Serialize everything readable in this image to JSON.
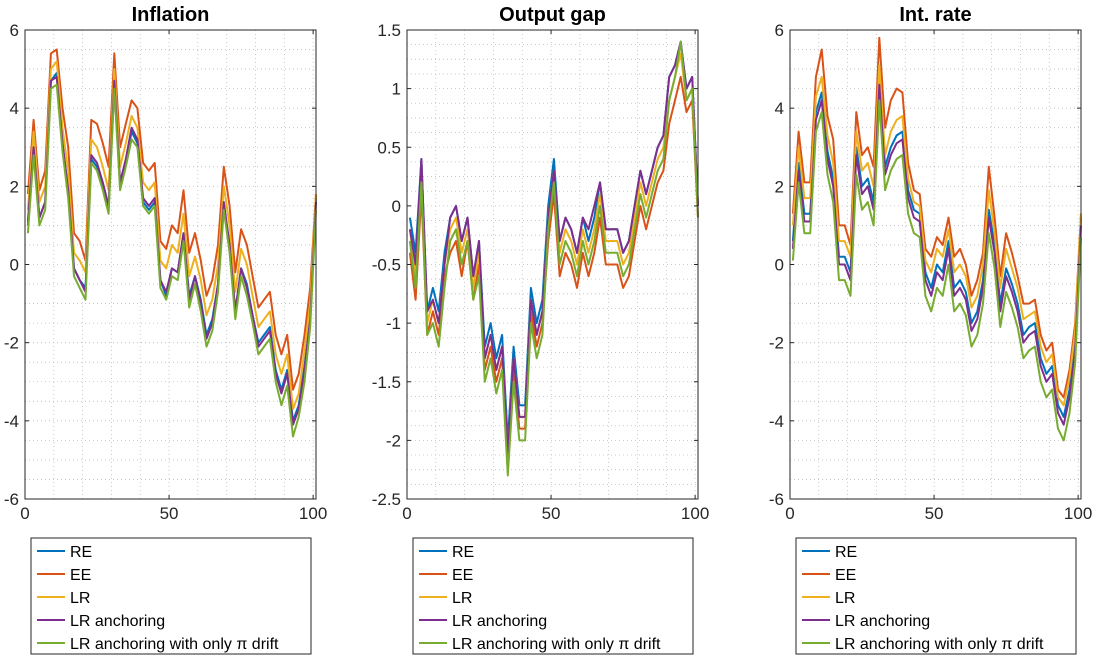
{
  "chart_data": [
    {
      "type": "line",
      "title": "Inflation",
      "xlim": [
        0,
        101
      ],
      "ylim": [
        -6,
        6
      ],
      "xticks": [
        0,
        50,
        100
      ],
      "xtick_labels": [
        "0",
        "50",
        "100"
      ],
      "yticks": [
        -6,
        -4,
        -2,
        0,
        2,
        4,
        6
      ],
      "ytick_labels": [
        "-6",
        "-4",
        "-2",
        "0",
        "2",
        "4",
        "6"
      ],
      "grid": "minor-dotted",
      "legend_position": "below",
      "x": [
        1,
        3,
        5,
        7,
        9,
        11,
        13,
        15,
        17,
        19,
        21,
        23,
        25,
        27,
        29,
        31,
        33,
        35,
        37,
        39,
        41,
        43,
        45,
        47,
        49,
        51,
        53,
        55,
        57,
        59,
        61,
        63,
        65,
        67,
        69,
        71,
        73,
        75,
        77,
        79,
        81,
        83,
        85,
        87,
        89,
        91,
        93,
        95,
        97,
        99,
        101
      ],
      "series": [
        {
          "name": "RE",
          "color": "#0072BD",
          "values": [
            1.0,
            3.0,
            1.2,
            1.6,
            4.7,
            4.9,
            3.1,
            1.9,
            -0.1,
            -0.4,
            -0.6,
            2.7,
            2.5,
            2.0,
            1.4,
            4.6,
            2.0,
            2.6,
            3.4,
            3.1,
            1.6,
            1.4,
            1.6,
            -0.4,
            -0.8,
            -0.1,
            -0.2,
            0.8,
            -0.8,
            -0.3,
            -0.9,
            -1.8,
            -1.4,
            -0.5,
            1.5,
            0.5,
            -1.2,
            -0.1,
            -0.5,
            -1.3,
            -2.0,
            -1.8,
            -1.6,
            -2.7,
            -3.2,
            -2.7,
            -4.0,
            -3.6,
            -2.6,
            -1.4,
            1.7
          ]
        },
        {
          "name": "EE",
          "color": "#D95319",
          "values": [
            1.8,
            3.7,
            1.9,
            2.4,
            5.4,
            5.5,
            4.0,
            3.0,
            0.8,
            0.6,
            0.1,
            3.7,
            3.6,
            3.1,
            2.5,
            5.4,
            3.0,
            3.6,
            4.2,
            4.0,
            2.6,
            2.4,
            2.6,
            0.6,
            0.4,
            1.0,
            0.8,
            1.9,
            0.3,
            0.8,
            0.1,
            -0.8,
            -0.4,
            0.5,
            2.5,
            1.5,
            -0.2,
            0.9,
            0.5,
            -0.3,
            -1.1,
            -0.9,
            -0.7,
            -1.8,
            -2.3,
            -1.8,
            -3.2,
            -2.8,
            -1.8,
            -0.6,
            1.8
          ]
        },
        {
          "name": "LR",
          "color": "#EDB120",
          "values": [
            1.4,
            3.4,
            1.6,
            2.0,
            5.0,
            5.2,
            3.5,
            2.4,
            0.3,
            0.1,
            -0.2,
            3.2,
            3.0,
            2.5,
            1.9,
            5.0,
            2.5,
            3.1,
            3.8,
            3.5,
            2.1,
            1.9,
            2.1,
            0.1,
            -0.1,
            0.5,
            0.3,
            1.3,
            -0.3,
            0.2,
            -0.4,
            -1.3,
            -0.9,
            0.0,
            2.0,
            1.0,
            -0.7,
            0.4,
            0.0,
            -0.8,
            -1.6,
            -1.4,
            -1.2,
            -2.3,
            -2.8,
            -2.3,
            -3.7,
            -3.3,
            -2.2,
            -1.0,
            1.8
          ]
        },
        {
          "name": "LR anchoring",
          "color": "#7E2F8E",
          "values": [
            1.1,
            3.0,
            1.2,
            1.6,
            4.7,
            4.8,
            3.1,
            1.9,
            -0.1,
            -0.4,
            -0.7,
            2.8,
            2.6,
            2.1,
            1.5,
            4.7,
            2.1,
            2.7,
            3.5,
            3.2,
            1.7,
            1.5,
            1.7,
            -0.4,
            -0.7,
            -0.1,
            -0.2,
            0.8,
            -0.9,
            -0.3,
            -1.0,
            -1.9,
            -1.5,
            -0.5,
            1.6,
            0.5,
            -1.2,
            -0.1,
            -0.6,
            -1.3,
            -2.1,
            -1.9,
            -1.7,
            -2.8,
            -3.3,
            -2.8,
            -4.1,
            -3.7,
            -2.7,
            -1.4,
            1.6
          ]
        },
        {
          "name": "LR anchoring with only π drift",
          "color": "#77AC30",
          "values": [
            0.8,
            2.8,
            1.0,
            1.4,
            4.5,
            4.6,
            2.9,
            1.7,
            -0.3,
            -0.6,
            -0.9,
            2.6,
            2.4,
            1.9,
            1.3,
            4.5,
            1.9,
            2.5,
            3.2,
            3.0,
            1.5,
            1.3,
            1.5,
            -0.6,
            -0.9,
            -0.3,
            -0.4,
            0.6,
            -1.1,
            -0.5,
            -1.2,
            -2.1,
            -1.7,
            -0.7,
            1.4,
            0.3,
            -1.4,
            -0.3,
            -0.8,
            -1.5,
            -2.3,
            -2.1,
            -1.9,
            -3.0,
            -3.6,
            -3.1,
            -4.4,
            -3.9,
            -3.0,
            -1.6,
            1.4
          ]
        }
      ]
    },
    {
      "type": "line",
      "title": "Output gap",
      "xlim": [
        0,
        101
      ],
      "ylim": [
        -2.5,
        1.5
      ],
      "xticks": [
        0,
        50,
        100
      ],
      "xtick_labels": [
        "0",
        "50",
        "100"
      ],
      "yticks": [
        -2.5,
        -2,
        -1.5,
        -1,
        -0.5,
        0,
        0.5,
        1,
        1.5
      ],
      "ytick_labels": [
        "-2.5",
        "-2",
        "-1.5",
        "-1",
        "-0.5",
        "0",
        "0.5",
        "1",
        "1.5"
      ],
      "grid": "minor-dotted",
      "legend_position": "below",
      "x": [
        1,
        3,
        5,
        7,
        9,
        11,
        13,
        15,
        17,
        19,
        21,
        23,
        25,
        27,
        29,
        31,
        33,
        35,
        37,
        39,
        41,
        43,
        45,
        47,
        49,
        51,
        53,
        55,
        57,
        59,
        61,
        63,
        65,
        67,
        69,
        71,
        73,
        75,
        77,
        79,
        81,
        83,
        85,
        87,
        89,
        91,
        93,
        95,
        97,
        99,
        101
      ],
      "series": [
        {
          "name": "RE",
          "color": "#0072BD",
          "values": [
            -0.1,
            -0.4,
            0.4,
            -0.9,
            -0.7,
            -0.9,
            -0.4,
            -0.1,
            0.0,
            -0.3,
            -0.1,
            -0.6,
            -0.3,
            -1.2,
            -1.0,
            -1.3,
            -1.1,
            -2.0,
            -1.2,
            -1.7,
            -1.7,
            -0.7,
            -1.0,
            -0.8,
            0.0,
            0.4,
            -0.3,
            -0.1,
            -0.2,
            -0.4,
            -0.1,
            -0.3,
            -0.1,
            0.2,
            -0.2,
            -0.2,
            -0.2,
            -0.4,
            -0.3,
            0.0,
            0.3,
            0.1,
            0.3,
            0.5,
            0.6,
            1.1,
            1.2,
            1.4,
            1.0,
            1.1,
            0.0
          ]
        },
        {
          "name": "EE",
          "color": "#D95319",
          "values": [
            -0.4,
            -0.8,
            0.1,
            -1.1,
            -0.9,
            -1.1,
            -0.6,
            -0.4,
            -0.3,
            -0.6,
            -0.3,
            -0.8,
            -0.5,
            -1.4,
            -1.2,
            -1.5,
            -1.3,
            -2.2,
            -1.4,
            -1.9,
            -1.9,
            -0.9,
            -1.2,
            -1.0,
            -0.3,
            0.1,
            -0.6,
            -0.4,
            -0.5,
            -0.7,
            -0.4,
            -0.6,
            -0.4,
            -0.1,
            -0.5,
            -0.5,
            -0.5,
            -0.7,
            -0.6,
            -0.3,
            0.0,
            -0.2,
            0.0,
            0.2,
            0.3,
            0.7,
            0.9,
            1.1,
            0.8,
            0.9,
            -0.1
          ]
        },
        {
          "name": "LR",
          "color": "#EDB120",
          "values": [
            -0.2,
            -0.6,
            0.3,
            -1.0,
            -0.8,
            -1.0,
            -0.5,
            -0.2,
            -0.1,
            -0.4,
            -0.2,
            -0.7,
            -0.4,
            -1.3,
            -1.1,
            -1.4,
            -1.2,
            -2.1,
            -1.3,
            -1.8,
            -1.8,
            -0.8,
            -1.1,
            -0.9,
            -0.1,
            0.3,
            -0.4,
            -0.2,
            -0.3,
            -0.5,
            -0.2,
            -0.4,
            -0.2,
            0.1,
            -0.3,
            -0.3,
            -0.3,
            -0.5,
            -0.4,
            -0.1,
            0.2,
            0.0,
            0.2,
            0.4,
            0.5,
            0.9,
            1.1,
            1.3,
            0.9,
            1.0,
            0.0
          ]
        },
        {
          "name": "LR anchoring",
          "color": "#7E2F8E",
          "values": [
            -0.2,
            -0.5,
            0.4,
            -0.9,
            -0.8,
            -1.0,
            -0.5,
            -0.1,
            0.0,
            -0.3,
            -0.1,
            -0.6,
            -0.3,
            -1.3,
            -1.1,
            -1.4,
            -1.2,
            -2.1,
            -1.3,
            -1.8,
            -1.8,
            -0.8,
            -1.1,
            -0.9,
            -0.1,
            0.3,
            -0.3,
            -0.1,
            -0.2,
            -0.4,
            -0.1,
            -0.2,
            0.0,
            0.2,
            -0.2,
            -0.2,
            -0.2,
            -0.4,
            -0.3,
            0.0,
            0.3,
            0.1,
            0.3,
            0.5,
            0.6,
            1.1,
            1.2,
            1.4,
            1.0,
            1.1,
            0.0
          ]
        },
        {
          "name": "LR anchoring with only π drift",
          "color": "#77AC30",
          "values": [
            -0.3,
            -0.7,
            0.2,
            -1.1,
            -1.0,
            -1.2,
            -0.7,
            -0.3,
            -0.2,
            -0.5,
            -0.3,
            -0.8,
            -0.6,
            -1.5,
            -1.3,
            -1.6,
            -1.4,
            -2.3,
            -1.5,
            -2.0,
            -2.0,
            -1.0,
            -1.3,
            -1.1,
            -0.2,
            0.2,
            -0.5,
            -0.3,
            -0.4,
            -0.6,
            -0.3,
            -0.5,
            -0.3,
            0.0,
            -0.4,
            -0.4,
            -0.4,
            -0.6,
            -0.5,
            -0.2,
            0.1,
            -0.1,
            0.1,
            0.3,
            0.4,
            0.9,
            1.1,
            1.4,
            0.9,
            1.0,
            -0.1
          ]
        }
      ]
    },
    {
      "type": "line",
      "title": "Int. rate",
      "xlim": [
        0,
        101
      ],
      "ylim": [
        -6,
        6
      ],
      "xticks": [
        0,
        50,
        100
      ],
      "xtick_labels": [
        "0",
        "50",
        "100"
      ],
      "yticks": [
        -6,
        -4,
        -2,
        0,
        2,
        4,
        6
      ],
      "ytick_labels": [
        "-6",
        "-4",
        "-2",
        "0",
        "2",
        "4",
        "6"
      ],
      "grid": "minor-dotted",
      "legend_position": "below",
      "x": [
        1,
        3,
        5,
        7,
        9,
        11,
        13,
        15,
        17,
        19,
        21,
        23,
        25,
        27,
        29,
        31,
        33,
        35,
        37,
        39,
        41,
        43,
        45,
        47,
        49,
        51,
        53,
        55,
        57,
        59,
        61,
        63,
        65,
        67,
        69,
        71,
        73,
        75,
        77,
        79,
        81,
        83,
        85,
        87,
        89,
        91,
        93,
        95,
        97,
        99,
        101
      ],
      "series": [
        {
          "name": "RE",
          "color": "#0072BD",
          "values": [
            0.6,
            2.6,
            1.3,
            1.3,
            3.9,
            4.4,
            2.9,
            2.2,
            0.2,
            0.2,
            -0.2,
            3.0,
            2.0,
            2.2,
            1.6,
            4.8,
            2.5,
            3.0,
            3.3,
            3.4,
            1.9,
            1.4,
            1.3,
            -0.2,
            -0.6,
            0.0,
            -0.2,
            0.6,
            -0.6,
            -0.4,
            -0.7,
            -1.5,
            -1.2,
            -0.4,
            1.4,
            0.5,
            -1.0,
            -0.1,
            -0.5,
            -1.0,
            -1.8,
            -1.6,
            -1.5,
            -2.4,
            -2.8,
            -2.6,
            -3.6,
            -3.9,
            -3.2,
            -2.0,
            1.2
          ]
        },
        {
          "name": "EE",
          "color": "#D95319",
          "values": [
            1.3,
            3.4,
            2.1,
            2.1,
            4.8,
            5.5,
            3.8,
            3.2,
            1.0,
            1.0,
            0.5,
            3.9,
            2.8,
            3.0,
            2.5,
            5.8,
            3.5,
            4.2,
            4.5,
            4.4,
            2.6,
            1.9,
            1.8,
            0.4,
            0.2,
            0.7,
            0.5,
            1.2,
            0.2,
            0.4,
            0.0,
            -0.8,
            -0.4,
            0.3,
            2.5,
            1.2,
            -0.3,
            0.8,
            0.3,
            -0.3,
            -1.0,
            -1.0,
            -0.9,
            -1.8,
            -2.2,
            -2.0,
            -3.2,
            -3.4,
            -2.7,
            -1.5,
            1.3
          ]
        },
        {
          "name": "LR",
          "color": "#EDB120",
          "values": [
            1.0,
            3.0,
            1.7,
            1.7,
            4.3,
            4.8,
            3.3,
            2.6,
            0.6,
            0.6,
            0.2,
            3.4,
            2.4,
            2.6,
            2.0,
            5.1,
            2.8,
            3.4,
            3.7,
            3.8,
            2.2,
            1.6,
            1.5,
            0.1,
            -0.2,
            0.4,
            0.2,
            0.9,
            -0.2,
            0.0,
            -0.3,
            -1.1,
            -0.8,
            0.0,
            1.9,
            0.8,
            -0.6,
            0.4,
            -0.1,
            -0.6,
            -1.4,
            -1.3,
            -1.2,
            -2.1,
            -2.5,
            -2.3,
            -3.4,
            -3.6,
            -2.9,
            -1.7,
            1.3
          ]
        },
        {
          "name": "LR anchoring",
          "color": "#7E2F8E",
          "values": [
            0.4,
            2.4,
            1.1,
            1.1,
            3.7,
            4.2,
            2.7,
            2.0,
            0.0,
            0.0,
            -0.4,
            2.8,
            1.8,
            2.0,
            1.4,
            4.6,
            2.3,
            2.8,
            3.1,
            3.2,
            1.7,
            1.2,
            1.1,
            -0.4,
            -0.8,
            -0.2,
            -0.4,
            0.4,
            -0.8,
            -0.6,
            -0.9,
            -1.7,
            -1.4,
            -0.6,
            1.2,
            0.3,
            -1.2,
            -0.3,
            -0.7,
            -1.2,
            -2.0,
            -1.8,
            -1.7,
            -2.6,
            -3.0,
            -2.8,
            -3.8,
            -4.1,
            -3.4,
            -2.2,
            1.0
          ]
        },
        {
          "name": "LR anchoring with only π drift",
          "color": "#77AC30",
          "values": [
            0.1,
            2.1,
            0.8,
            0.8,
            3.4,
            3.9,
            2.3,
            1.6,
            -0.4,
            -0.4,
            -0.8,
            2.3,
            1.4,
            1.6,
            1.0,
            4.2,
            1.9,
            2.4,
            2.7,
            2.8,
            1.3,
            0.8,
            0.7,
            -0.8,
            -1.2,
            -0.6,
            -0.8,
            0.0,
            -1.2,
            -1.0,
            -1.3,
            -2.1,
            -1.8,
            -1.0,
            0.8,
            -0.1,
            -1.6,
            -0.7,
            -1.1,
            -1.6,
            -2.4,
            -2.2,
            -2.1,
            -3.0,
            -3.4,
            -3.2,
            -4.2,
            -4.5,
            -3.8,
            -2.5,
            0.7
          ]
        }
      ]
    }
  ]
}
